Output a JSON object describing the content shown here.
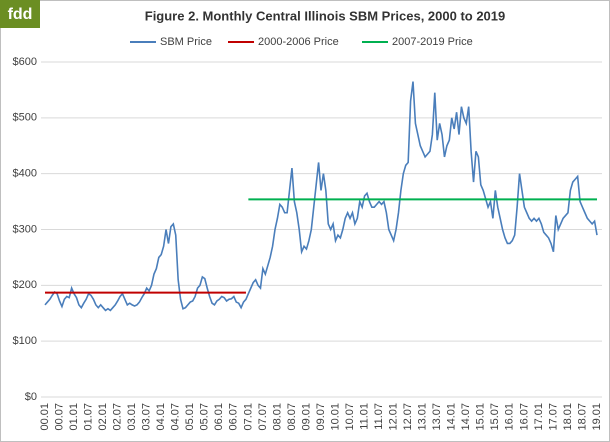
{
  "logo": "fdd",
  "chart_data": {
    "type": "line",
    "title": "Figure  2.  Monthly  Central  Illinois  SBM  Prices,  2000  to  2019",
    "categories": [
      "00.01",
      null,
      null,
      null,
      null,
      null,
      "00.07",
      null,
      null,
      null,
      null,
      null,
      "01.01",
      null,
      null,
      null,
      null,
      null,
      "01.07",
      null,
      null,
      null,
      null,
      null,
      "02.01",
      null,
      null,
      null,
      null,
      null,
      "02.07",
      null,
      null,
      null,
      null,
      null,
      "03.01",
      null,
      null,
      null,
      null,
      null,
      "03.07",
      null,
      null,
      null,
      null,
      null,
      "04.01",
      null,
      null,
      null,
      null,
      null,
      "04.07",
      null,
      null,
      null,
      null,
      null,
      "05.01",
      null,
      null,
      null,
      null,
      null,
      "05.07",
      null,
      null,
      null,
      null,
      null,
      "06.01",
      null,
      null,
      null,
      null,
      null,
      "06.07",
      null,
      null,
      null,
      null,
      null,
      "07.01",
      null,
      null,
      null,
      null,
      null,
      "07.07",
      null,
      null,
      null,
      null,
      null,
      "08.01",
      null,
      null,
      null,
      null,
      null,
      "08.07",
      null,
      null,
      null,
      null,
      null,
      "09.01",
      null,
      null,
      null,
      null,
      null,
      "09.07",
      null,
      null,
      null,
      null,
      null,
      "10.01",
      null,
      null,
      null,
      null,
      null,
      "10.07",
      null,
      null,
      null,
      null,
      null,
      "11.01",
      null,
      null,
      null,
      null,
      null,
      "11.07",
      null,
      null,
      null,
      null,
      null,
      "12.01",
      null,
      null,
      null,
      null,
      null,
      "12.07",
      null,
      null,
      null,
      null,
      null,
      "13.01",
      null,
      null,
      null,
      null,
      null,
      "13.07",
      null,
      null,
      null,
      null,
      null,
      "14.01",
      null,
      null,
      null,
      null,
      null,
      "14.07",
      null,
      null,
      null,
      null,
      null,
      "15.01",
      null,
      null,
      null,
      null,
      null,
      "15.07",
      null,
      null,
      null,
      null,
      null,
      "16.01",
      null,
      null,
      null,
      null,
      null,
      "16.07",
      null,
      null,
      null,
      null,
      null,
      "17.01",
      null,
      null,
      null,
      null,
      null,
      "17.07",
      null,
      null,
      null,
      null,
      null,
      "18.01",
      null,
      null,
      null,
      null,
      null,
      "18.07",
      null,
      null,
      null,
      null,
      null,
      "19.01"
    ],
    "series": [
      {
        "name": "SBM Price",
        "color": "#4a7ebb",
        "values": [
          165,
          170,
          175,
          182,
          188,
          185,
          172,
          162,
          175,
          180,
          178,
          195,
          185,
          178,
          165,
          160,
          168,
          175,
          185,
          182,
          175,
          165,
          160,
          165,
          160,
          155,
          158,
          155,
          160,
          165,
          172,
          180,
          185,
          175,
          165,
          168,
          165,
          163,
          165,
          170,
          178,
          185,
          195,
          190,
          200,
          220,
          230,
          250,
          255,
          270,
          300,
          275,
          305,
          310,
          290,
          210,
          175,
          158,
          160,
          165,
          170,
          172,
          180,
          195,
          200,
          215,
          212,
          195,
          180,
          168,
          165,
          172,
          175,
          180,
          178,
          172,
          175,
          176,
          180,
          170,
          168,
          160,
          170,
          175,
          185,
          195,
          205,
          210,
          200,
          195,
          230,
          220,
          235,
          250,
          270,
          300,
          320,
          345,
          340,
          330,
          330,
          370,
          410,
          350,
          330,
          300,
          260,
          270,
          265,
          280,
          300,
          340,
          380,
          420,
          370,
          400,
          370,
          310,
          300,
          310,
          280,
          290,
          285,
          300,
          320,
          330,
          320,
          330,
          310,
          320,
          350,
          340,
          360,
          365,
          350,
          340,
          340,
          345,
          350,
          345,
          350,
          330,
          300,
          290,
          280,
          300,
          330,
          370,
          400,
          415,
          420,
          530,
          565,
          490,
          470,
          450,
          440,
          430,
          435,
          440,
          470,
          545,
          460,
          490,
          470,
          430,
          450,
          460,
          500,
          480,
          510,
          470,
          520,
          500,
          490,
          520,
          440,
          385,
          440,
          430,
          380,
          370,
          355,
          340,
          350,
          320,
          370,
          340,
          320,
          300,
          285,
          275,
          275,
          280,
          290,
          340,
          400,
          370,
          340,
          330,
          320,
          315,
          320,
          315,
          320,
          310,
          295,
          290,
          285,
          275,
          260,
          325,
          300,
          310,
          320,
          325,
          330,
          370,
          385,
          390,
          395,
          350,
          340,
          330,
          320,
          315,
          310,
          315,
          290
        ]
      },
      {
        "name": "2000-2006 Price",
        "color": "#c00000",
        "values": [
          187,
          187,
          187,
          187,
          187,
          187,
          187,
          187,
          187,
          187,
          187,
          187,
          187,
          187,
          187,
          187,
          187,
          187,
          187,
          187,
          187,
          187,
          187,
          187,
          187,
          187,
          187,
          187,
          187,
          187,
          187,
          187,
          187,
          187,
          187,
          187,
          187,
          187,
          187,
          187,
          187,
          187,
          187,
          187,
          187,
          187,
          187,
          187,
          187,
          187,
          187,
          187,
          187,
          187,
          187,
          187,
          187,
          187,
          187,
          187,
          187,
          187,
          187,
          187,
          187,
          187,
          187,
          187,
          187,
          187,
          187,
          187,
          187,
          187,
          187,
          187,
          187,
          187,
          187,
          187,
          187,
          187,
          187,
          187,
          null,
          null,
          null,
          null,
          null,
          null,
          null,
          null,
          null,
          null,
          null,
          null,
          null,
          null,
          null,
          null,
          null,
          null,
          null,
          null,
          null,
          null,
          null,
          null,
          null,
          null,
          null,
          null,
          null,
          null,
          null,
          null,
          null,
          null,
          null,
          null,
          null,
          null,
          null,
          null,
          null,
          null,
          null,
          null,
          null,
          null,
          null,
          null,
          null,
          null,
          null,
          null,
          null,
          null,
          null,
          null,
          null,
          null,
          null,
          null,
          null,
          null,
          null,
          null,
          null,
          null,
          null,
          null,
          null,
          null,
          null,
          null,
          null,
          null,
          null,
          null,
          null,
          null,
          null,
          null,
          null,
          null,
          null,
          null,
          null,
          null,
          null,
          null,
          null,
          null,
          null,
          null,
          null,
          null,
          null,
          null,
          null,
          null,
          null,
          null,
          null,
          null,
          null,
          null,
          null,
          null,
          null,
          null,
          null,
          null,
          null,
          null,
          null,
          null,
          null,
          null,
          null,
          null,
          null,
          null,
          null,
          null,
          null,
          null,
          null,
          null,
          null,
          null,
          null,
          null,
          null,
          null,
          null,
          null,
          null,
          null,
          null,
          null,
          null,
          null,
          null,
          null,
          null,
          null,
          null
        ]
      },
      {
        "name": "2007-2019 Price",
        "color": "#00b050",
        "values": [
          null,
          null,
          null,
          null,
          null,
          null,
          null,
          null,
          null,
          null,
          null,
          null,
          null,
          null,
          null,
          null,
          null,
          null,
          null,
          null,
          null,
          null,
          null,
          null,
          null,
          null,
          null,
          null,
          null,
          null,
          null,
          null,
          null,
          null,
          null,
          null,
          null,
          null,
          null,
          null,
          null,
          null,
          null,
          null,
          null,
          null,
          null,
          null,
          null,
          null,
          null,
          null,
          null,
          null,
          null,
          null,
          null,
          null,
          null,
          null,
          null,
          null,
          null,
          null,
          null,
          null,
          null,
          null,
          null,
          null,
          null,
          null,
          null,
          null,
          null,
          null,
          null,
          null,
          null,
          null,
          null,
          null,
          null,
          null,
          354,
          354,
          354,
          354,
          354,
          354,
          354,
          354,
          354,
          354,
          354,
          354,
          354,
          354,
          354,
          354,
          354,
          354,
          354,
          354,
          354,
          354,
          354,
          354,
          354,
          354,
          354,
          354,
          354,
          354,
          354,
          354,
          354,
          354,
          354,
          354,
          354,
          354,
          354,
          354,
          354,
          354,
          354,
          354,
          354,
          354,
          354,
          354,
          354,
          354,
          354,
          354,
          354,
          354,
          354,
          354,
          354,
          354,
          354,
          354,
          354,
          354,
          354,
          354,
          354,
          354,
          354,
          354,
          354,
          354,
          354,
          354,
          354,
          354,
          354,
          354,
          354,
          354,
          354,
          354,
          354,
          354,
          354,
          354,
          354,
          354,
          354,
          354,
          354,
          354,
          354,
          354,
          354,
          354,
          354,
          354,
          354,
          354,
          354,
          354,
          354,
          354,
          354,
          354,
          354,
          354,
          354,
          354,
          354,
          354,
          354,
          354,
          354,
          354,
          354,
          354,
          354,
          354,
          354,
          354,
          354,
          354,
          354,
          354,
          354,
          354,
          354,
          354,
          354,
          354,
          354,
          354,
          354,
          354,
          354,
          354,
          354,
          354,
          354,
          354,
          354,
          354,
          354,
          354,
          354
        ]
      }
    ],
    "ylim": [
      0,
      600
    ],
    "yticks": [
      {
        "value": 0,
        "label": "$0"
      },
      {
        "value": 100,
        "label": "$100"
      },
      {
        "value": 200,
        "label": "$200"
      },
      {
        "value": 300,
        "label": "$300"
      },
      {
        "value": 400,
        "label": "$400"
      },
      {
        "value": 500,
        "label": "$500"
      },
      {
        "value": 600,
        "label": "$600"
      }
    ],
    "grid": true,
    "legend": "top"
  }
}
